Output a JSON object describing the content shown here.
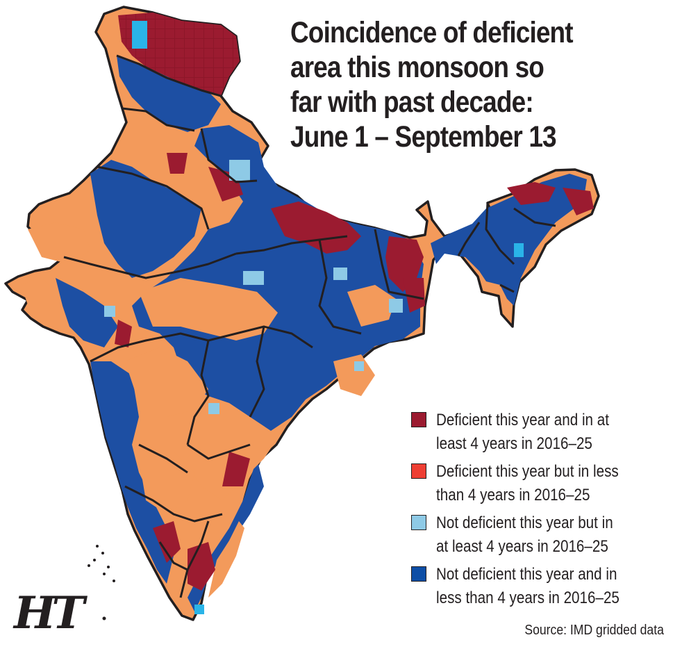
{
  "title_lines": [
    "Coincidence of deficient",
    "area this monsoon so",
    "far with past decade:",
    "June 1 – September 13"
  ],
  "legend": [
    {
      "color": "#9b1b30",
      "line1": "Deficient this year and in at",
      "line2": "least 4 years in 2016–25"
    },
    {
      "color": "#ee3e33",
      "line1": "Deficient this year but in less",
      "line2": "than 4 years in 2016–25"
    },
    {
      "color": "#8ecae6",
      "line1": "Not deficient this year but in",
      "line2": "at least 4 years in 2016–25"
    },
    {
      "color": "#0d4ea6",
      "line1": "Not deficient this year and in",
      "line2": "less than 4 years in 2016–25"
    }
  ],
  "source": "Source: IMD gridded data",
  "logo_text": "HT",
  "map_colors": {
    "orange": "#f39a5b",
    "dark_red": "#9b1b30",
    "blue": "#1d4fa3",
    "light_blue": "#8ecae6",
    "cyan": "#2ab4e8",
    "border": "#231f20"
  }
}
